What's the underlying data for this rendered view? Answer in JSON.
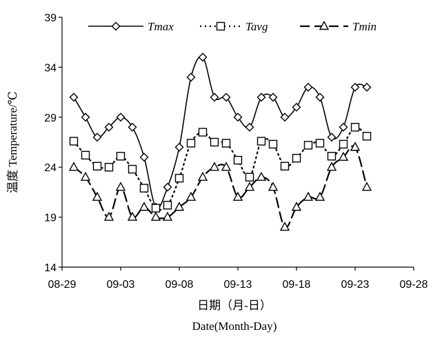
{
  "chart_data": {
    "type": "line",
    "xlabel_cn": "日期（月-日）",
    "xlabel_en": "Date(Month-Day)",
    "ylabel": "温度 Temperature/℃",
    "y_ticks": [
      "14",
      "19",
      "24",
      "29",
      "34",
      "39"
    ],
    "x_ticks": [
      "08-29",
      "09-03",
      "09-08",
      "09-13",
      "09-18",
      "09-23",
      "09-28"
    ],
    "ylim": [
      14,
      39
    ],
    "xlim_days": [
      0,
      30
    ],
    "x_days": [
      1,
      2,
      3,
      4,
      5,
      6,
      7,
      8,
      9,
      10,
      11,
      12,
      13,
      14,
      15,
      16,
      17,
      18,
      19,
      20,
      21,
      22,
      23,
      24,
      25,
      26
    ],
    "series": [
      {
        "name": "Tmax",
        "marker": "diamond",
        "style": "solid",
        "values": [
          31,
          29,
          27,
          28,
          29,
          28,
          25,
          20,
          22,
          26,
          33,
          35,
          31,
          31,
          29,
          28,
          31,
          31,
          29,
          30,
          32,
          31,
          27,
          28,
          32,
          32
        ]
      },
      {
        "name": "Tavg",
        "marker": "square",
        "style": "dotted",
        "values": [
          26.6,
          25.2,
          24.1,
          24.0,
          25.1,
          23.8,
          21.9,
          19.9,
          20.2,
          22.9,
          26.4,
          27.5,
          26.5,
          26.4,
          24.7,
          23.0,
          26.6,
          26.3,
          24.1,
          24.9,
          26.2,
          26.4,
          25.1,
          26.3,
          28.0,
          27.1
        ]
      },
      {
        "name": "Tmin",
        "marker": "triangle",
        "style": "dashed",
        "values": [
          24,
          23,
          21,
          19,
          22,
          19,
          20,
          19,
          19,
          20,
          21,
          23,
          24,
          24,
          21,
          22,
          23,
          22,
          18,
          20,
          21,
          21,
          24,
          25,
          26,
          22
        ]
      }
    ],
    "grid": false,
    "legend": "top"
  }
}
